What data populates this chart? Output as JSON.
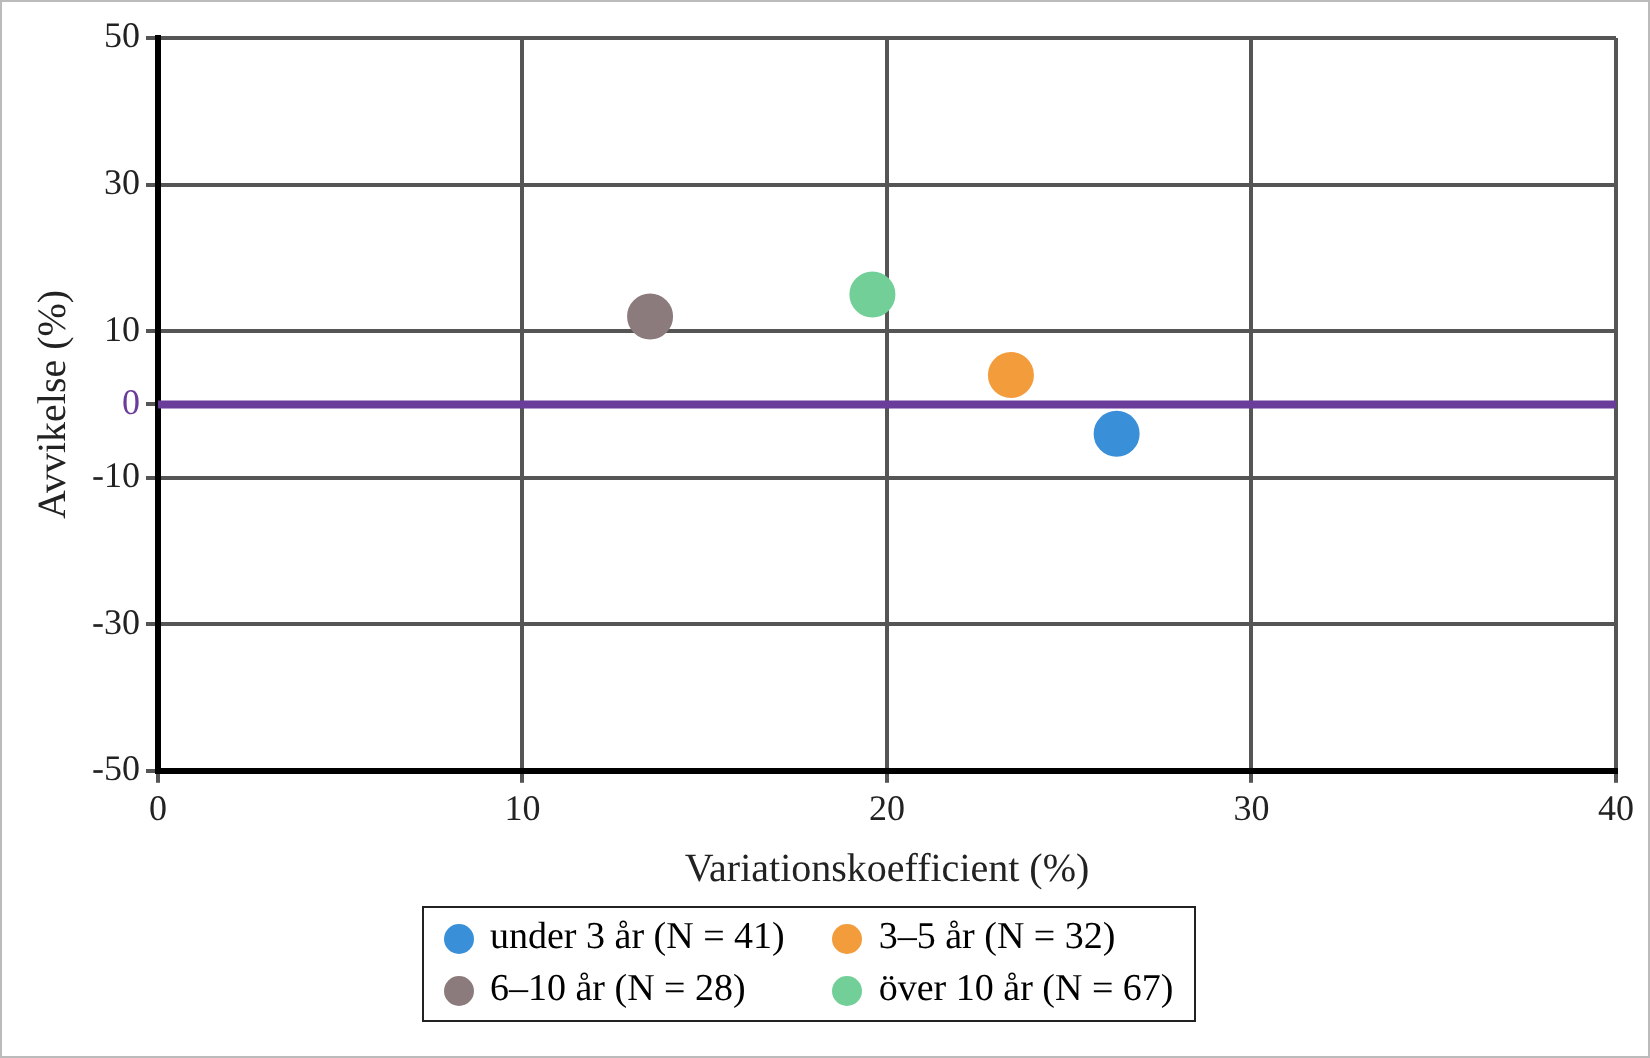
{
  "chart_data": {
    "type": "scatter",
    "xlabel": "Variationskoefficient (%)",
    "ylabel": "Avvikelse (%)",
    "xlim": [
      0,
      40
    ],
    "xticks": [
      0,
      10,
      20,
      30,
      40
    ],
    "ylim": [
      -50,
      50
    ],
    "yticks": [
      -50,
      -30,
      -10,
      0,
      10,
      30,
      50
    ],
    "grid": true,
    "legend": "bottom",
    "marker": "circle",
    "ref_lines": [
      {
        "axis": "y",
        "value": 0,
        "color": "#6a3d9a"
      }
    ],
    "series": [
      {
        "name": "under 3 år (N = 41)",
        "color": "#3a8fd9",
        "x": [
          26.3
        ],
        "values": [
          -4
        ]
      },
      {
        "name": "3–5 år (N = 32)",
        "color": "#f39c3c",
        "x": [
          23.4
        ],
        "values": [
          4
        ]
      },
      {
        "name": "6–10 år (N = 28)",
        "color": "#8c7b7d",
        "x": [
          13.5
        ],
        "values": [
          12
        ]
      },
      {
        "name": "över 10 år (N = 67)",
        "color": "#72cf98",
        "x": [
          19.6
        ],
        "values": [
          15
        ]
      }
    ]
  }
}
